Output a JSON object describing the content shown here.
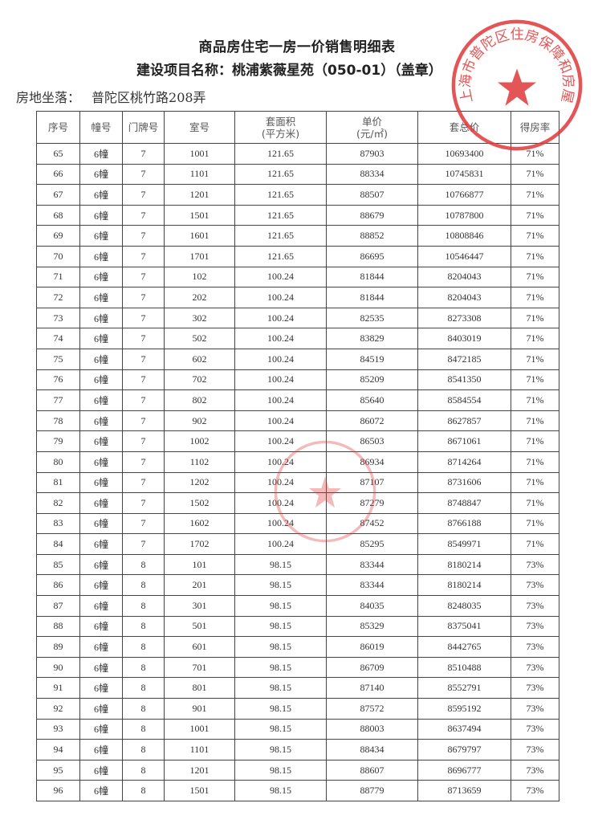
{
  "document": {
    "title": "商品房住宅一房一价销售明细表",
    "project_line": "建设项目名称：桃浦紫薇星苑（050-01）（盖章）",
    "address_label": "房地坐落：",
    "address_value": "普陀区桃竹路208弄",
    "stamp_text": "上海市普陀区住房保障和房屋管理局",
    "stamp_color": "#e0383a"
  },
  "table": {
    "headers": [
      "序号",
      "幢号",
      "门牌号",
      "室号",
      "套面积\n(平方米)",
      "单价\n(元/㎡)",
      "套总价",
      "得房率"
    ],
    "rows": [
      [
        "65",
        "6幢",
        "7",
        "1001",
        "121.65",
        "87903",
        "10693400",
        "71%"
      ],
      [
        "66",
        "6幢",
        "7",
        "1101",
        "121.65",
        "88334",
        "10745831",
        "71%"
      ],
      [
        "67",
        "6幢",
        "7",
        "1201",
        "121.65",
        "88507",
        "10766877",
        "71%"
      ],
      [
        "68",
        "6幢",
        "7",
        "1501",
        "121.65",
        "88679",
        "10787800",
        "71%"
      ],
      [
        "69",
        "6幢",
        "7",
        "1601",
        "121.65",
        "88852",
        "10808846",
        "71%"
      ],
      [
        "70",
        "6幢",
        "7",
        "1701",
        "121.65",
        "86695",
        "10546447",
        "71%"
      ],
      [
        "71",
        "6幢",
        "7",
        "102",
        "100.24",
        "81844",
        "8204043",
        "71%"
      ],
      [
        "72",
        "6幢",
        "7",
        "202",
        "100.24",
        "81844",
        "8204043",
        "71%"
      ],
      [
        "73",
        "6幢",
        "7",
        "302",
        "100.24",
        "82535",
        "8273308",
        "71%"
      ],
      [
        "74",
        "6幢",
        "7",
        "502",
        "100.24",
        "83829",
        "8403019",
        "71%"
      ],
      [
        "75",
        "6幢",
        "7",
        "602",
        "100.24",
        "84519",
        "8472185",
        "71%"
      ],
      [
        "76",
        "6幢",
        "7",
        "702",
        "100.24",
        "85209",
        "8541350",
        "71%"
      ],
      [
        "77",
        "6幢",
        "7",
        "802",
        "100.24",
        "85640",
        "8584554",
        "71%"
      ],
      [
        "78",
        "6幢",
        "7",
        "902",
        "100.24",
        "86072",
        "8627857",
        "71%"
      ],
      [
        "79",
        "6幢",
        "7",
        "1002",
        "100.24",
        "86503",
        "8671061",
        "71%"
      ],
      [
        "80",
        "6幢",
        "7",
        "1102",
        "100.24",
        "86934",
        "8714264",
        "71%"
      ],
      [
        "81",
        "6幢",
        "7",
        "1202",
        "100.24",
        "87107",
        "8731606",
        "71%"
      ],
      [
        "82",
        "6幢",
        "7",
        "1502",
        "100.24",
        "87279",
        "8748847",
        "71%"
      ],
      [
        "83",
        "6幢",
        "7",
        "1602",
        "100.24",
        "87452",
        "8766188",
        "71%"
      ],
      [
        "84",
        "6幢",
        "7",
        "1702",
        "100.24",
        "85295",
        "8549971",
        "71%"
      ],
      [
        "85",
        "6幢",
        "8",
        "101",
        "98.15",
        "83344",
        "8180214",
        "73%"
      ],
      [
        "86",
        "6幢",
        "8",
        "201",
        "98.15",
        "83344",
        "8180214",
        "73%"
      ],
      [
        "87",
        "6幢",
        "8",
        "301",
        "98.15",
        "84035",
        "8248035",
        "73%"
      ],
      [
        "88",
        "6幢",
        "8",
        "501",
        "98.15",
        "85329",
        "8375041",
        "73%"
      ],
      [
        "89",
        "6幢",
        "8",
        "601",
        "98.15",
        "86019",
        "8442765",
        "73%"
      ],
      [
        "90",
        "6幢",
        "8",
        "701",
        "98.15",
        "86709",
        "8510488",
        "73%"
      ],
      [
        "91",
        "6幢",
        "8",
        "801",
        "98.15",
        "87140",
        "8552791",
        "73%"
      ],
      [
        "92",
        "6幢",
        "8",
        "901",
        "98.15",
        "87572",
        "8595192",
        "73%"
      ],
      [
        "93",
        "6幢",
        "8",
        "1001",
        "98.15",
        "88003",
        "8637494",
        "73%"
      ],
      [
        "94",
        "6幢",
        "8",
        "1101",
        "98.15",
        "88434",
        "8679797",
        "73%"
      ],
      [
        "95",
        "6幢",
        "8",
        "1201",
        "98.15",
        "88607",
        "8696777",
        "73%"
      ],
      [
        "96",
        "6幢",
        "8",
        "1501",
        "98.15",
        "88779",
        "8713659",
        "73%"
      ]
    ]
  }
}
